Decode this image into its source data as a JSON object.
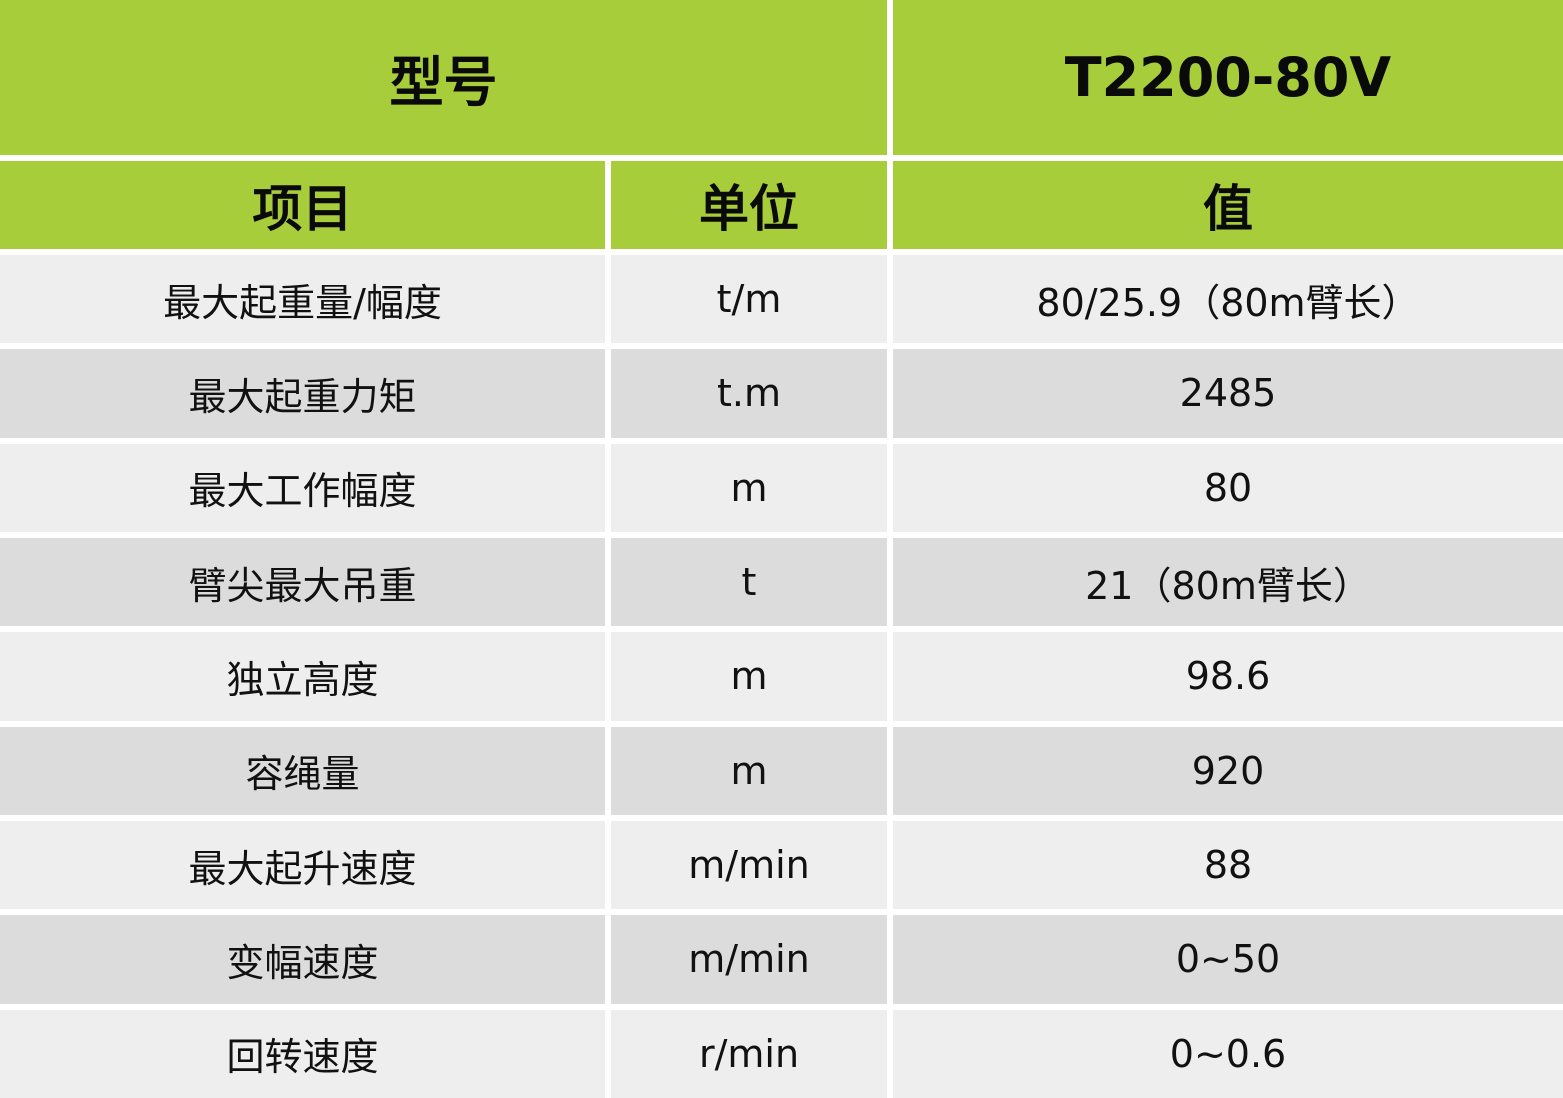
{
  "header": {
    "model_label": "型号",
    "model_value": "T2200-80V",
    "columns": [
      "项目",
      "单位",
      "值"
    ]
  },
  "colors": {
    "header_green": "#a8cd3a",
    "row_light": "#eeeeee",
    "row_dark": "#dcdcdc"
  },
  "rows": [
    {
      "item": "最大起重量/幅度",
      "unit": "t/m",
      "value": "80/25.9（80m臂长）"
    },
    {
      "item": "最大起重力矩",
      "unit": "t.m",
      "value": "2485"
    },
    {
      "item": "最大工作幅度",
      "unit": "m",
      "value": "80"
    },
    {
      "item": "臂尖最大吊重",
      "unit": "t",
      "value": "21（80m臂长）"
    },
    {
      "item": "独立高度",
      "unit": "m",
      "value": "98.6"
    },
    {
      "item": "容绳量",
      "unit": "m",
      "value": "920"
    },
    {
      "item": "最大起升速度",
      "unit": "m/min",
      "value": "88"
    },
    {
      "item": "变幅速度",
      "unit": "m/min",
      "value": "0~50"
    },
    {
      "item": "回转速度",
      "unit": "r/min",
      "value": "0~0.6"
    }
  ]
}
